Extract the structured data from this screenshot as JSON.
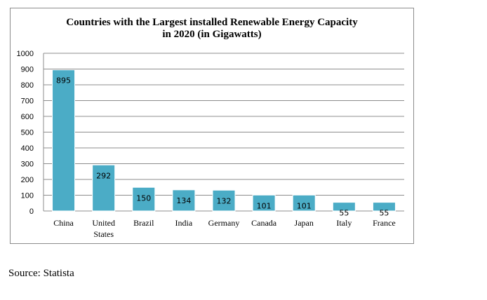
{
  "chart_data": {
    "type": "bar",
    "title": "Countries with the Largest installed Renewable Energy Capacity\nin 2020 (in Gigawatts)",
    "categories": [
      "China",
      "United States",
      "Brazil",
      "India",
      "Germany",
      "Canada",
      "Japan",
      "Italy",
      "France"
    ],
    "category_lines": [
      [
        "China"
      ],
      [
        "United",
        "States"
      ],
      [
        "Brazil"
      ],
      [
        "India"
      ],
      [
        "Germany"
      ],
      [
        "Canada"
      ],
      [
        "Japan"
      ],
      [
        "Italy"
      ],
      [
        "France"
      ]
    ],
    "values": [
      895,
      292,
      150,
      134,
      132,
      101,
      101,
      55,
      55
    ],
    "data_labels": [
      "895",
      "292",
      "150",
      "134",
      "132",
      "101",
      "101",
      "55",
      "55"
    ],
    "ylim": [
      0,
      1000
    ],
    "yticks": [
      "0",
      "100",
      "200",
      "300",
      "400",
      "500",
      "600",
      "700",
      "800",
      "900",
      "1000"
    ],
    "bar_color": "#4bacc6",
    "grid": true,
    "xlabel": "",
    "ylabel": ""
  },
  "source": "Source: Statista"
}
